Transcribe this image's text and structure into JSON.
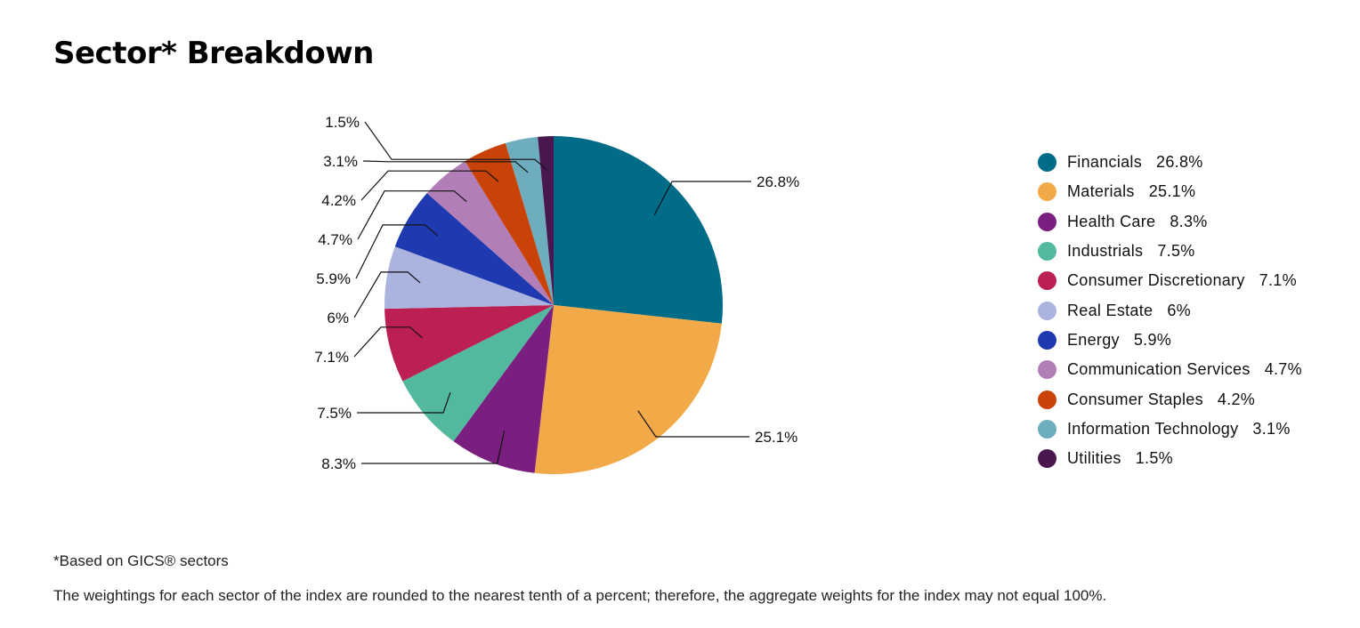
{
  "page": {
    "title": "Sector* Breakdown",
    "footnote": "*Based on GICS® sectors",
    "disclaimer": "The weightings for each sector of the index are rounded to the nearest tenth of a percent; therefore, the aggregate weights for the index may not equal 100%."
  },
  "chart_data": {
    "type": "pie",
    "title": "Sector* Breakdown",
    "legend_position": "right",
    "categories": [
      "Financials",
      "Materials",
      "Health Care",
      "Industrials",
      "Consumer Discretionary",
      "Real Estate",
      "Energy",
      "Communication Services",
      "Consumer Staples",
      "Information Technology",
      "Utilities"
    ],
    "values": [
      26.8,
      25.1,
      8.3,
      7.5,
      7.1,
      6,
      5.9,
      4.7,
      4.2,
      3.1,
      1.5
    ],
    "labels": [
      "26.8%",
      "25.1%",
      "8.3%",
      "7.5%",
      "7.1%",
      "6%",
      "5.9%",
      "4.7%",
      "4.2%",
      "3.1%",
      "1.5%"
    ],
    "colors": [
      "#006c87",
      "#f2a948",
      "#7a1f80",
      "#52b99f",
      "#bc1f52",
      "#abb4df",
      "#1f3ab0",
      "#b27eb7",
      "#c94308",
      "#6eadbd",
      "#4a1650"
    ]
  }
}
